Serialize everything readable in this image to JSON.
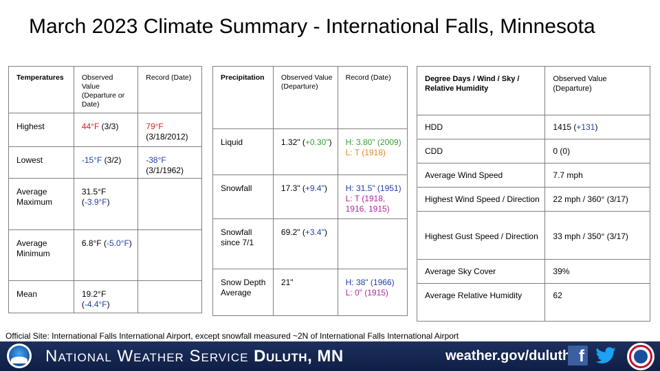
{
  "title": "March 2023 Climate Summary - International Falls, Minnesota",
  "temperatures": {
    "headers": [
      "Temperatures",
      "Observed Value (Departure or Date)",
      "Record (Date)"
    ],
    "highest": {
      "label": "Highest",
      "value": "44°F",
      "date": " (3/3)",
      "record_value": "79°F",
      "record_date": " (3/18/2012)"
    },
    "lowest": {
      "label": "Lowest",
      "value": "-15°F",
      "date": " (3/2)",
      "record_value": "-38°F",
      "record_date": " (3/1/1962)"
    },
    "avg_max": {
      "label": "Average Maximum",
      "value": "31.5°F (",
      "departure": "-3.9°F",
      "close": ")"
    },
    "avg_min": {
      "label": "Average Minimum",
      "value": "6.8°F (",
      "departure": "-5.0°F",
      "close": ")"
    },
    "mean": {
      "label": "Mean",
      "value": "19.2°F (",
      "departure": "-4.4°F",
      "close": ")"
    }
  },
  "precipitation": {
    "headers": [
      "Precipitation",
      "Observed Value (Departure)",
      "Record (Date)"
    ],
    "liquid": {
      "label": "Liquid",
      "value": "1.32\" (",
      "departure": "+0.30\"",
      "close": ")",
      "record_high": "H: 3.80\" (2009)",
      "record_low": "L: T (1918)"
    },
    "snowfall": {
      "label": "Snowfall",
      "value": "17.3\" (",
      "departure": "+9.4\"",
      "close": ")",
      "record_high": "H: 31.5\" (1951)",
      "record_low": "L: T (1918, 1916, 1915)"
    },
    "snow_since": {
      "label": "Snowfall since 7/1",
      "value": "69.2\" (",
      "departure": "+3.4\"",
      "close": ")"
    },
    "snow_depth": {
      "label": "Snow Depth Average",
      "value": "21\"",
      "record_high": "H: 38\" (1966)",
      "record_low": "L: 0\" (1915)"
    }
  },
  "degree_days": {
    "headers": [
      "Degree Days / Wind / Sky / Relative Humidity",
      "Observed Value (Departure)"
    ],
    "rows": [
      {
        "label": "HDD",
        "value": "1415 (",
        "departure": "+131",
        "close": ")"
      },
      {
        "label": "CDD",
        "value": "0 (0)"
      },
      {
        "label": "Average Wind Speed",
        "value": "7.7 mph"
      },
      {
        "label": "Highest Wind Speed / Direction",
        "value": "22 mph / 360° (3/17)"
      },
      {
        "label": "Highest Gust Speed / Direction",
        "value": "33 mph / 350° (3/17)"
      },
      {
        "label": "Average Sky Cover",
        "value": "39%"
      },
      {
        "label": "Average Relative Humidity",
        "value": "62"
      }
    ]
  },
  "footnote": "Official Site: International  Falls International Airport, except snowfall measured ~2N of International Falls International Airport",
  "banner": {
    "org": "National Weather Service ",
    "office": "Duluth, MN",
    "url": "weather.gov/duluth",
    "fb_glyph": "f"
  },
  "icons": [
    "noaa-logo",
    "facebook-icon",
    "twitter-icon",
    "nws-logo"
  ],
  "colors": {
    "record_high": "#d21f1f",
    "below_normal": "#1f3fa8",
    "above_liquid": "#3a9a3a",
    "record_low_liquid": "#e08a1e",
    "record_low_snow": "#b0259f",
    "banner": "#1c2f5e"
  }
}
